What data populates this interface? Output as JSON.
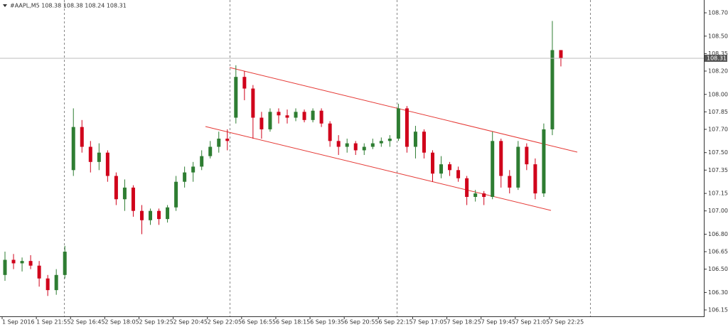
{
  "chart_data": {
    "type": "candlestick",
    "title": "#AAPL,M5 108.38 108.38 108.24 108.31",
    "categories": [
      "1 Sep 2016",
      null,
      null,
      null,
      "1 Sep 21:55",
      null,
      null,
      null,
      "2 Sep 16:45",
      null,
      null,
      null,
      "2 Sep 18:05",
      null,
      null,
      null,
      "2 Sep 19:25",
      null,
      null,
      null,
      "2 Sep 20:45",
      null,
      null,
      null,
      "2 Sep 22:05",
      null,
      null,
      null,
      "6 Sep 16:55",
      null,
      null,
      null,
      "6 Sep 18:15",
      null,
      null,
      null,
      "6 Sep 19:35",
      null,
      null,
      null,
      "6 Sep 20:55",
      null,
      null,
      null,
      "6 Sep 22:15",
      null,
      null,
      null,
      "7 Sep 17:05",
      null,
      null,
      null,
      "7 Sep 18:25",
      null,
      null,
      null,
      "7 Sep 19:45",
      null,
      null,
      null,
      "7 Sep 21:05",
      null,
      null,
      null,
      "7 Sep 22:25",
      null
    ],
    "open": [
      106.45,
      106.58,
      106.55,
      106.57,
      106.53,
      106.42,
      106.32,
      106.45,
      107.35,
      107.72,
      107.55,
      107.42,
      107.5,
      107.3,
      107.1,
      107.2,
      107.0,
      106.92,
      107.0,
      106.93,
      107.03,
      107.25,
      107.33,
      107.38,
      107.47,
      107.55,
      107.62,
      107.8,
      108.15,
      108.05,
      107.8,
      107.7,
      107.85,
      107.82,
      107.8,
      107.85,
      107.78,
      107.86,
      107.75,
      107.6,
      107.55,
      107.58,
      107.52,
      107.55,
      107.58,
      107.6,
      107.62,
      107.88,
      107.55,
      107.68,
      107.5,
      107.32,
      107.4,
      107.35,
      107.28,
      107.12,
      107.15,
      107.12,
      107.6,
      107.3,
      107.2,
      107.55,
      107.4,
      107.15,
      107.7,
      108.38
    ],
    "high": [
      106.65,
      106.63,
      106.6,
      106.62,
      106.57,
      106.45,
      106.5,
      106.7,
      107.88,
      107.78,
      107.6,
      107.58,
      107.52,
      107.33,
      107.27,
      107.22,
      107.05,
      107.02,
      107.02,
      107.05,
      107.3,
      107.38,
      107.42,
      107.52,
      107.6,
      107.68,
      107.7,
      108.25,
      108.2,
      108.08,
      107.85,
      107.88,
      107.88,
      107.87,
      107.88,
      107.87,
      107.88,
      107.88,
      107.77,
      107.65,
      107.62,
      107.6,
      107.58,
      107.62,
      107.63,
      107.65,
      107.92,
      107.9,
      107.73,
      107.7,
      107.52,
      107.47,
      107.42,
      107.38,
      107.3,
      107.18,
      107.17,
      107.68,
      107.62,
      107.35,
      107.6,
      107.58,
      107.45,
      107.75,
      108.63,
      108.38
    ],
    "low": [
      106.4,
      106.5,
      106.48,
      106.5,
      106.35,
      106.27,
      106.28,
      106.42,
      107.3,
      107.5,
      107.33,
      107.35,
      107.25,
      107.05,
      107.0,
      106.95,
      106.8,
      106.88,
      106.88,
      106.9,
      107.0,
      107.2,
      107.25,
      107.35,
      107.45,
      107.5,
      107.52,
      107.75,
      107.95,
      107.62,
      107.62,
      107.68,
      107.75,
      107.75,
      107.77,
      107.76,
      107.76,
      107.72,
      107.55,
      107.48,
      107.5,
      107.48,
      107.48,
      107.53,
      107.55,
      107.55,
      107.6,
      107.5,
      107.45,
      107.45,
      107.25,
      107.28,
      107.3,
      107.25,
      107.05,
      107.08,
      107.05,
      107.1,
      107.2,
      107.15,
      107.18,
      107.35,
      107.1,
      107.12,
      107.65,
      108.24
    ],
    "close": [
      106.58,
      106.55,
      106.57,
      106.53,
      106.42,
      106.32,
      106.45,
      106.65,
      107.72,
      107.55,
      107.42,
      107.5,
      107.3,
      107.1,
      107.2,
      107.0,
      106.92,
      107.0,
      106.93,
      107.03,
      107.25,
      107.33,
      107.38,
      107.47,
      107.55,
      107.62,
      107.6,
      108.15,
      108.05,
      107.8,
      107.7,
      107.85,
      107.82,
      107.8,
      107.85,
      107.78,
      107.86,
      107.75,
      107.6,
      107.55,
      107.58,
      107.52,
      107.55,
      107.58,
      107.6,
      107.62,
      107.88,
      107.55,
      107.68,
      107.5,
      107.32,
      107.4,
      107.35,
      107.28,
      107.12,
      107.15,
      107.12,
      107.6,
      107.3,
      107.2,
      107.55,
      107.4,
      107.15,
      107.7,
      108.38,
      108.31
    ],
    "up_color": "#2e7d32",
    "down_color": "#d0021b",
    "last_price": 108.31,
    "ylim": [
      106.095,
      108.81
    ],
    "yticks": [
      106.15,
      {
        "value": 106.3,
        "label": "106.30"
      },
      {
        "value": 106.5,
        "label": "106.50"
      },
      106.65,
      {
        "value": 106.8,
        "label": "106.80"
      },
      {
        "value": 107,
        "label": "107.00"
      },
      107.15,
      107.35,
      {
        "value": 107.5,
        "label": "107.50"
      },
      {
        "value": 107.7,
        "label": "107.70"
      },
      107.85,
      {
        "value": 108,
        "label": "108.00"
      },
      {
        "value": 108.2,
        "label": "108.20"
      },
      108.35,
      {
        "value": 108.5,
        "label": "108.50"
      },
      {
        "value": 108.7,
        "label": "108.70"
      }
    ],
    "grid": false
  }
}
